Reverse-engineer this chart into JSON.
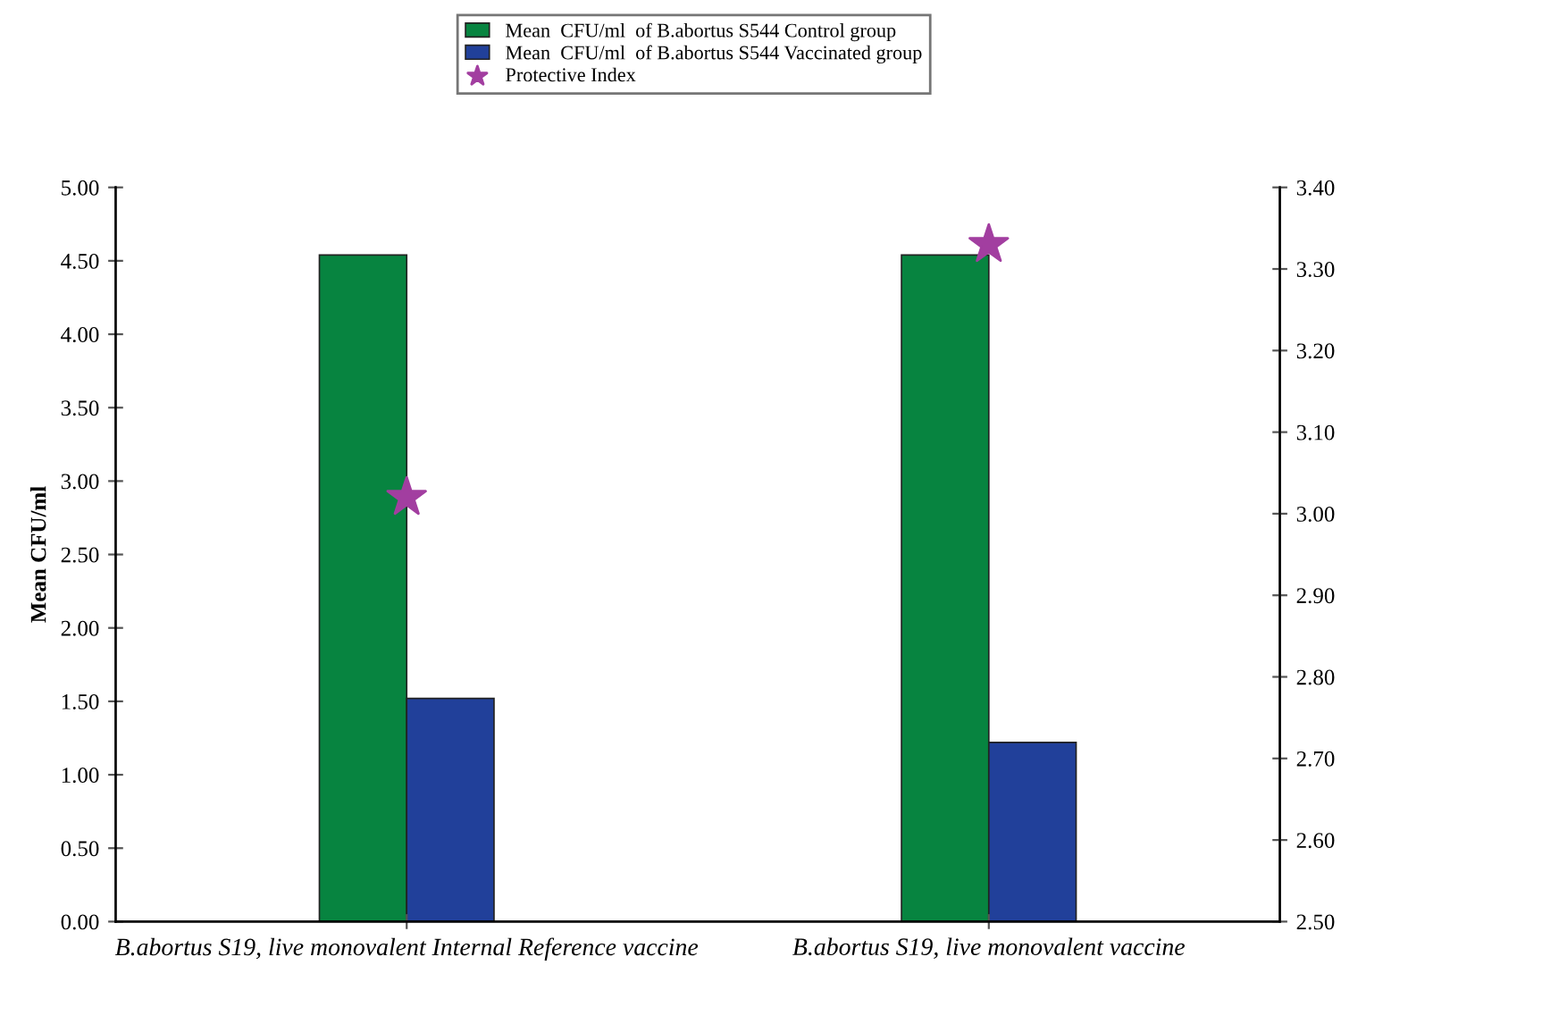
{
  "chart_data": {
    "type": "bar",
    "categories": [
      "B.abortus S19, live monovalent Internal Reference vaccine",
      "B.abortus S19, live monovalent vaccine"
    ],
    "ylabel": "Mean CFU/ml",
    "ylim": [
      0,
      5
    ],
    "yticks": [
      {
        "value": 0,
        "label": "0.00"
      },
      {
        "value": 0.5,
        "label": "0.50"
      },
      {
        "value": 1,
        "label": "1.00"
      },
      {
        "value": 1.5,
        "label": "1.50"
      },
      {
        "value": 2,
        "label": "2.00"
      },
      {
        "value": 2.5,
        "label": "2.50"
      },
      {
        "value": 3,
        "label": "3.00"
      },
      {
        "value": 3.5,
        "label": "3.50"
      },
      {
        "value": 4,
        "label": "4.00"
      },
      {
        "value": 4.5,
        "label": "4.50"
      },
      {
        "value": 5,
        "label": "5.00"
      }
    ],
    "y2lim": [
      2.5,
      3.4
    ],
    "y2ticks": [
      {
        "value": 2.5,
        "label": "2.50"
      },
      {
        "value": 2.6,
        "label": "2.60"
      },
      {
        "value": 2.7,
        "label": "2.70"
      },
      {
        "value": 2.8,
        "label": "2.80"
      },
      {
        "value": 2.9,
        "label": "2.90"
      },
      {
        "value": 3.0,
        "label": "3.00"
      },
      {
        "value": 3.1,
        "label": "3.10"
      },
      {
        "value": 3.2,
        "label": "3.20"
      },
      {
        "value": 3.3,
        "label": "3.30"
      },
      {
        "value": 3.4,
        "label": "3.40"
      }
    ],
    "series": [
      {
        "name": "Mean  CFU/ml  of B.abortus S544 Control group",
        "color": "#078440",
        "values": [
          4.54,
          4.54
        ]
      },
      {
        "name": "Mean  CFU/ml  of B.abortus S544 Vaccinated group",
        "color": "#21409a",
        "values": [
          1.52,
          1.22
        ]
      },
      {
        "name": "Protective Index",
        "type": "scatter",
        "axis": "y2",
        "marker": "star",
        "color": "#a23ea0",
        "x": [
          "B.abortus S19, live monovalent Internal Reference vaccine",
          "B.abortus S19, live monovalent vaccine"
        ],
        "values": [
          3.02,
          3.33
        ]
      }
    ],
    "legend": "top",
    "grid": false
  }
}
